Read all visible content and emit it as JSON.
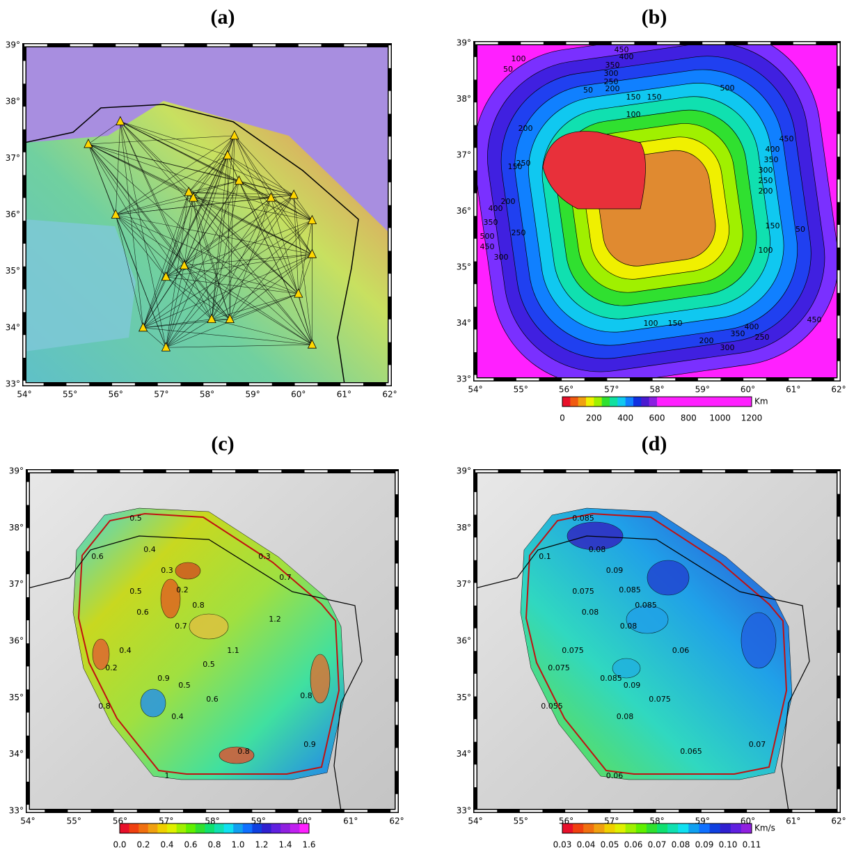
{
  "panels": [
    {
      "title": "(a)",
      "lon_labels": [
        "54°",
        "55°",
        "56°",
        "57°",
        "58°",
        "59°",
        "60°",
        "61°",
        "62°"
      ],
      "lat_labels": [
        "33°",
        "34°",
        "35°",
        "36°",
        "37°",
        "38°",
        "39°"
      ]
    },
    {
      "title": "(b)",
      "lon_labels": [
        "54°",
        "55°",
        "56°",
        "57°",
        "58°",
        "59°",
        "60°",
        "61°",
        "62°"
      ],
      "lat_labels": [
        "33°",
        "34°",
        "35°",
        "36°",
        "37°",
        "38°",
        "39°"
      ],
      "contour_labels": [
        "450",
        "400",
        "350",
        "300",
        "250",
        "200",
        "150",
        "50",
        "500",
        "450",
        "400",
        "350",
        "300",
        "250",
        "200",
        "150",
        "100",
        "50",
        "50",
        "100",
        "150",
        "200",
        "250",
        "300",
        "350",
        "400",
        "450",
        "500",
        "150",
        "100",
        "200",
        "250",
        "300",
        "350",
        "400",
        "450",
        "100",
        "150",
        "200",
        "250"
      ],
      "colorbar": {
        "ticks": [
          "0",
          "200",
          "400",
          "600",
          "800",
          "1000",
          "1200"
        ],
        "unit": "Km",
        "colors": [
          "#e8102a",
          "#f05a10",
          "#f0a010",
          "#f0f000",
          "#a0f000",
          "#30e030",
          "#10e0a0",
          "#10c8f0",
          "#1080ff",
          "#1030e0",
          "#4a1ad0",
          "#8a20e0",
          "#ff20ff",
          "#ff20ff",
          "#ff20ff",
          "#ff20ff",
          "#ff20ff",
          "#ff20ff",
          "#ff20ff",
          "#ff20ff",
          "#ff20ff",
          "#ff20ff",
          "#ff20ff",
          "#ff20ff"
        ]
      }
    },
    {
      "title": "(c)",
      "lon_labels": [
        "54°",
        "55°",
        "56°",
        "57°",
        "58°",
        "59°",
        "60°",
        "61°",
        "62°"
      ],
      "lat_labels": [
        "33°",
        "34°",
        "35°",
        "36°",
        "37°",
        "38°",
        "39°"
      ],
      "contour_labels": [
        "0.6",
        "0.5",
        "0.4",
        "0.3",
        "0.2",
        "0.6",
        "0.5",
        "0.4",
        "0.7",
        "0.8",
        "0.9",
        "0.5",
        "0.4",
        "0.6",
        "0.8",
        "0.9",
        "1",
        "0.8",
        "0.2",
        "1.1",
        "1.2",
        "0.7",
        "0.3",
        "0.8",
        "0.5"
      ],
      "colorbar": {
        "ticks": [
          "0.0",
          "0.2",
          "0.4",
          "0.6",
          "0.8",
          "1.0",
          "1.2",
          "1.4",
          "1.6"
        ],
        "unit": "",
        "colors": [
          "#e8102a",
          "#f04010",
          "#f07010",
          "#f0a010",
          "#f0d000",
          "#e0f000",
          "#a0f000",
          "#60f000",
          "#30e030",
          "#10e070",
          "#10e0b0",
          "#10e0f0",
          "#10a0f0",
          "#1070ff",
          "#1040e0",
          "#3020d0",
          "#6020e0",
          "#9020e0",
          "#c020f0",
          "#ff20ff"
        ]
      }
    },
    {
      "title": "(d)",
      "lon_labels": [
        "54°",
        "55°",
        "56°",
        "57°",
        "58°",
        "59°",
        "60°",
        "61°",
        "62°"
      ],
      "lat_labels": [
        "33°",
        "34°",
        "35°",
        "36°",
        "37°",
        "38°",
        "39°"
      ],
      "contour_labels": [
        "0.1",
        "0.085",
        "0.08",
        "0.09",
        "0.085",
        "0.08",
        "0.075",
        "0.075",
        "0.08",
        "0.085",
        "0.085",
        "0.09",
        "0.08",
        "0.075",
        "0.065",
        "0.07",
        "0.06",
        "0.055",
        "0.075",
        "0.06"
      ],
      "colorbar": {
        "ticks": [
          "0.03",
          "0.04",
          "0.05",
          "0.06",
          "0.07",
          "0.08",
          "0.09",
          "0.10",
          "0.11"
        ],
        "unit": "Km/s",
        "colors": [
          "#e8102a",
          "#f04010",
          "#f07010",
          "#f0a010",
          "#f0d000",
          "#e0f000",
          "#a0f000",
          "#60f000",
          "#30e030",
          "#10e070",
          "#10e0b0",
          "#10e0f0",
          "#10a0f0",
          "#1070ff",
          "#1040e0",
          "#3020d0",
          "#6020e0",
          "#9020e0"
        ]
      }
    }
  ]
}
